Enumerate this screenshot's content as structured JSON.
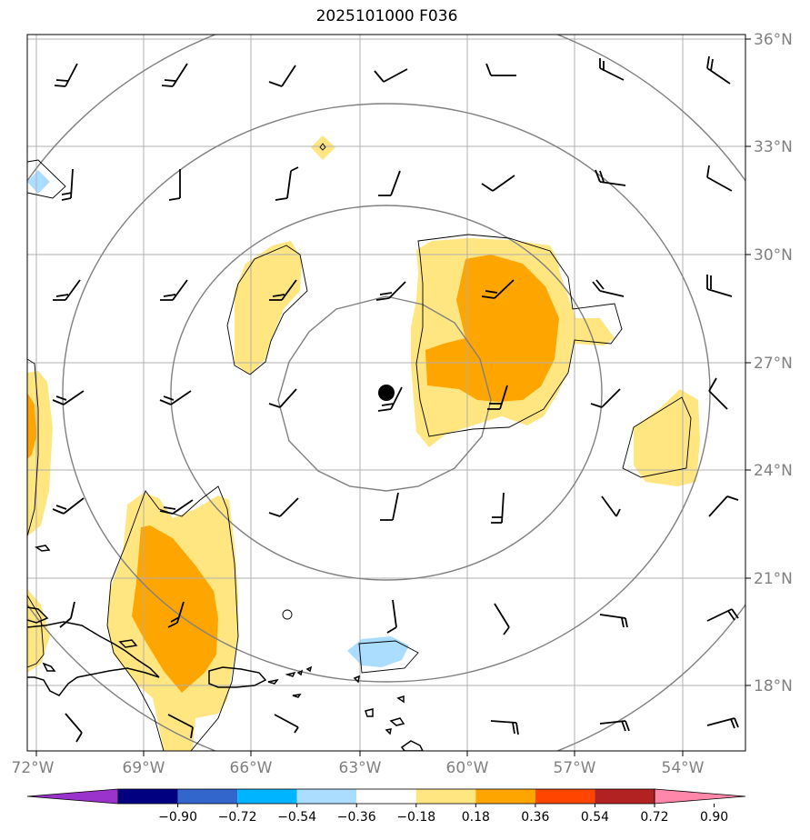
{
  "title": "2025101000 F036",
  "lon_labels": [
    "72°W",
    "69°W",
    "66°W",
    "63°W",
    "60°W",
    "57°W",
    "54°W"
  ],
  "lat_labels": [
    "36°N",
    "33°N",
    "30°N",
    "27°N",
    "24°N",
    "21°N",
    "18°N"
  ],
  "colorbar": {
    "ticks": [
      "−0.90",
      "−0.72",
      "−0.54",
      "−0.36",
      "−0.18",
      "0.18",
      "0.36",
      "0.54",
      "0.72",
      "0.90"
    ],
    "colors": [
      "#9933cc",
      "#000080",
      "#3366cc",
      "#00b4ff",
      "#aaddff",
      "#ffffff",
      "#ffe680",
      "#ffa500",
      "#ff4500",
      "#b22222",
      "#ff88aa"
    ]
  },
  "legend_colors": {
    "light_blue": "#aaddff",
    "yellow": "#ffe680",
    "orange": "#ffa500",
    "grid": "#b0b0b0",
    "rings": "#808080"
  },
  "storm_center": {
    "lon": -62.3,
    "lat": 26.2
  }
}
